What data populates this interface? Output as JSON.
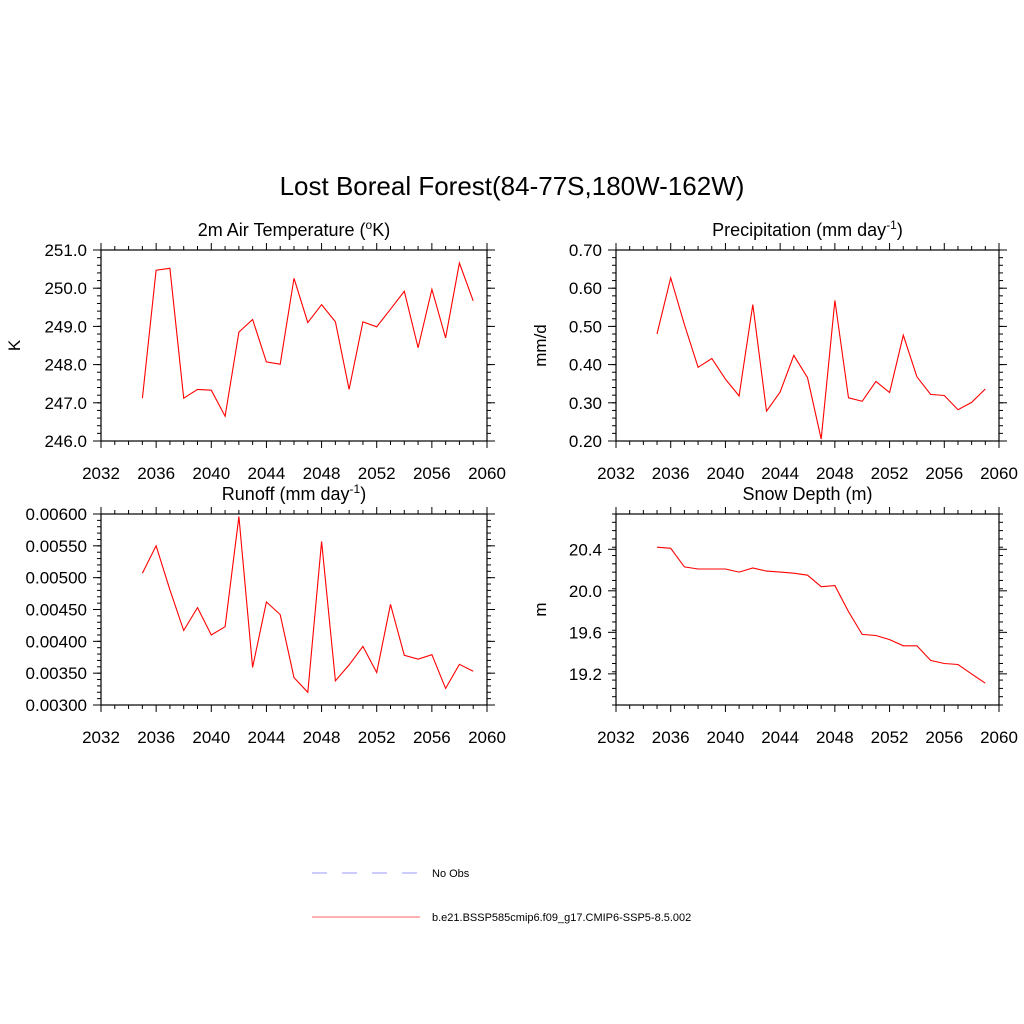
{
  "figure": {
    "title": "Lost Boreal Forest(84-77S,180W-162W)"
  },
  "colors": {
    "series": "#ff0000",
    "obs": "#9999ff",
    "axes": "#000000",
    "background": "#ffffff"
  },
  "legend": {
    "placement": "bottom-center",
    "entries": [
      {
        "label": "No Obs",
        "style": "dashed",
        "color": "#9999ff"
      },
      {
        "label": "b.e21.BSSP585cmip6.f09_g17.CMIP6-SSP5-8.5.002",
        "style": "solid",
        "color": "#ff6666"
      }
    ]
  },
  "chart_data": [
    {
      "type": "line",
      "title": "2m Air Temperature (",
      "title_super": "o",
      "title_suffix": "K)",
      "ylabel": "K",
      "xlim": [
        2032,
        2060
      ],
      "xticks": [
        2032,
        2036,
        2040,
        2044,
        2048,
        2052,
        2056,
        2060
      ],
      "ylim": [
        246.0,
        251.0
      ],
      "yticks": [
        246.0,
        247.0,
        248.0,
        249.0,
        250.0,
        251.0
      ],
      "ytick_labels": [
        "246.0",
        "247.0",
        "248.0",
        "249.0",
        "250.0",
        "251.0"
      ],
      "yminor": 0.2,
      "grid": false,
      "x": [
        2035,
        2036,
        2037,
        2038,
        2039,
        2040,
        2041,
        2042,
        2043,
        2044,
        2045,
        2046,
        2047,
        2048,
        2049,
        2050,
        2051,
        2052,
        2053,
        2054,
        2055,
        2056,
        2057,
        2058,
        2059
      ],
      "y": [
        247.12,
        250.47,
        250.52,
        247.12,
        247.35,
        247.33,
        246.65,
        248.85,
        249.18,
        248.07,
        248.01,
        250.26,
        249.1,
        249.57,
        249.12,
        247.35,
        249.12,
        248.99,
        249.45,
        249.92,
        248.44,
        249.97,
        248.7,
        250.66,
        249.67
      ]
    },
    {
      "type": "line",
      "title": "Precipitation (mm day",
      "title_super": "-1",
      "title_suffix": ")",
      "ylabel": "mm/d",
      "xlim": [
        2032,
        2060
      ],
      "xticks": [
        2032,
        2036,
        2040,
        2044,
        2048,
        2052,
        2056,
        2060
      ],
      "ylim": [
        0.2,
        0.7
      ],
      "yticks": [
        0.2,
        0.3,
        0.4,
        0.5,
        0.6,
        0.7
      ],
      "ytick_labels": [
        "0.20",
        "0.30",
        "0.40",
        "0.50",
        "0.60",
        "0.70"
      ],
      "yminor": 0.02,
      "grid": false,
      "x": [
        2035,
        2036,
        2037,
        2038,
        2039,
        2040,
        2041,
        2042,
        2043,
        2044,
        2045,
        2046,
        2047,
        2048,
        2049,
        2050,
        2051,
        2052,
        2053,
        2054,
        2055,
        2056,
        2057,
        2058,
        2059
      ],
      "y": [
        0.48,
        0.627,
        0.505,
        0.393,
        0.416,
        0.362,
        0.318,
        0.557,
        0.278,
        0.328,
        0.424,
        0.366,
        0.205,
        0.568,
        0.313,
        0.304,
        0.356,
        0.327,
        0.477,
        0.368,
        0.322,
        0.319,
        0.282,
        0.301,
        0.336
      ]
    },
    {
      "type": "line",
      "title": "Runoff (mm day",
      "title_super": "-1",
      "title_suffix": ")",
      "ylabel": "",
      "xlim": [
        2032,
        2060
      ],
      "xticks": [
        2032,
        2036,
        2040,
        2044,
        2048,
        2052,
        2056,
        2060
      ],
      "ylim": [
        0.003,
        0.006
      ],
      "yticks": [
        0.003,
        0.0035,
        0.004,
        0.0045,
        0.005,
        0.0055,
        0.006
      ],
      "ytick_labels": [
        "0.00300",
        "0.00350",
        "0.00400",
        "0.00450",
        "0.00500",
        "0.00550",
        "0.00600"
      ],
      "yminor": 0.0001,
      "grid": false,
      "x": [
        2035,
        2036,
        2037,
        2038,
        2039,
        2040,
        2041,
        2042,
        2043,
        2044,
        2045,
        2046,
        2047,
        2048,
        2049,
        2050,
        2051,
        2052,
        2053,
        2054,
        2055,
        2056,
        2057,
        2058,
        2059
      ],
      "y": [
        0.00507,
        0.0055,
        0.00481,
        0.00417,
        0.00453,
        0.0041,
        0.00423,
        0.00596,
        0.00359,
        0.00462,
        0.00442,
        0.00343,
        0.0032,
        0.00557,
        0.00338,
        0.00363,
        0.00392,
        0.00351,
        0.00458,
        0.00378,
        0.00372,
        0.00379,
        0.00326,
        0.00364,
        0.00353
      ]
    },
    {
      "type": "line",
      "title": "Snow Depth (m)",
      "title_super": "",
      "title_suffix": "",
      "ylabel": "m",
      "xlim": [
        2032,
        2060
      ],
      "xticks": [
        2032,
        2036,
        2040,
        2044,
        2048,
        2052,
        2056,
        2060
      ],
      "ylim": [
        18.9,
        20.74
      ],
      "yticks": [
        19.2,
        19.6,
        20.0,
        20.4
      ],
      "ytick_labels": [
        "19.2",
        "19.6",
        "20.0",
        "20.4"
      ],
      "yminor": 0.08,
      "grid": false,
      "x": [
        2035,
        2036,
        2037,
        2038,
        2039,
        2040,
        2041,
        2042,
        2043,
        2044,
        2045,
        2046,
        2047,
        2048,
        2049,
        2050,
        2051,
        2052,
        2053,
        2054,
        2055,
        2056,
        2057,
        2058,
        2059
      ],
      "y": [
        20.42,
        20.41,
        20.23,
        20.21,
        20.21,
        20.21,
        20.18,
        20.22,
        20.19,
        20.18,
        20.17,
        20.15,
        20.04,
        20.05,
        19.8,
        19.58,
        19.57,
        19.53,
        19.47,
        19.47,
        19.33,
        19.3,
        19.29,
        19.2,
        19.11
      ]
    }
  ]
}
